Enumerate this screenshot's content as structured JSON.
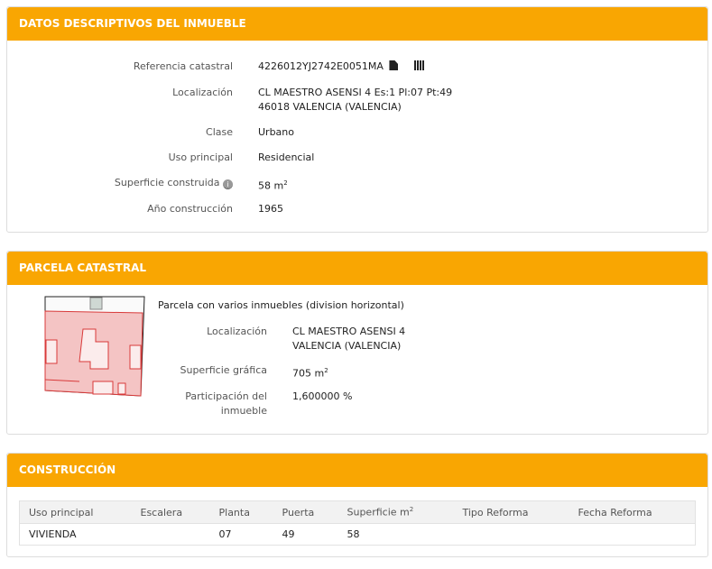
{
  "datos": {
    "title": "DATOS DESCRIPTIVOS DEL INMUEBLE",
    "ref_label": "Referencia catastral",
    "ref_value": "4226012YJ2742E0051MA",
    "loc_label": "Localización",
    "loc_line1": "CL MAESTRO ASENSI 4 Es:1 Pl:07 Pt:49",
    "loc_line2": "46018 VALENCIA (VALENCIA)",
    "clase_label": "Clase",
    "clase_value": "Urbano",
    "uso_label": "Uso principal",
    "uso_value": "Residencial",
    "sup_label": "Superficie construida",
    "sup_value": "58 m",
    "sup_unit_exp": "2",
    "anio_label": "Año construcción",
    "anio_value": "1965"
  },
  "parcela": {
    "title": "PARCELA CATASTRAL",
    "desc": "Parcela con varios inmuebles (division horizontal)",
    "loc_label": "Localización",
    "loc_line1": "CL MAESTRO ASENSI 4",
    "loc_line2": "VALENCIA (VALENCIA)",
    "sup_label": "Superficie gráfica",
    "sup_value": "705 m",
    "sup_unit_exp": "2",
    "part_label1": "Participación del",
    "part_label2": "inmueble",
    "part_value": "1,600000 %"
  },
  "construccion": {
    "title": "CONSTRUCCIÓN",
    "headers": [
      "Uso principal",
      "Escalera",
      "Planta",
      "Puerta",
      "Superficie m",
      "Tipo Reforma",
      "Fecha Reforma"
    ],
    "sup_exp": "2",
    "rows": [
      [
        "VIVIENDA",
        "",
        "07",
        "49",
        "58",
        "",
        ""
      ]
    ]
  },
  "colors": {
    "header": "#f9a602",
    "parcel_fill": "#f4c4c4",
    "parcel_line": "#d83a3a"
  }
}
